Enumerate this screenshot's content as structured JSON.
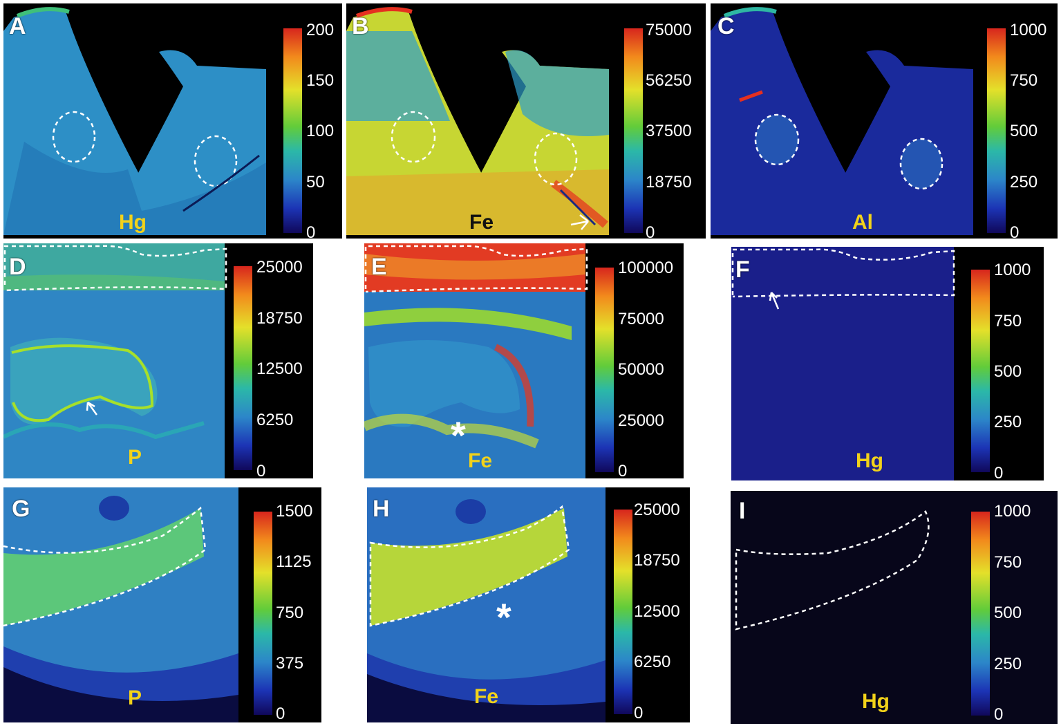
{
  "panels": [
    {
      "letter": "A",
      "element": "Hg",
      "ticks": [
        "200",
        "150",
        "100",
        "50",
        "0"
      ]
    },
    {
      "letter": "B",
      "element": "Fe",
      "ticks": [
        "75000",
        "56250",
        "37500",
        "18750",
        "0"
      ]
    },
    {
      "letter": "C",
      "element": "Al",
      "ticks": [
        "1000",
        "750",
        "500",
        "250",
        "0"
      ]
    },
    {
      "letter": "D",
      "element": "P",
      "ticks": [
        "25000",
        "18750",
        "12500",
        "6250",
        "0"
      ]
    },
    {
      "letter": "E",
      "element": "Fe",
      "ticks": [
        "100000",
        "75000",
        "50000",
        "25000",
        "0"
      ]
    },
    {
      "letter": "F",
      "element": "Hg",
      "ticks": [
        "1000",
        "750",
        "500",
        "250",
        "0"
      ]
    },
    {
      "letter": "G",
      "element": "P",
      "ticks": [
        "1500",
        "1125",
        "750",
        "375",
        "0"
      ]
    },
    {
      "letter": "H",
      "element": "Fe",
      "ticks": [
        "25000",
        "18750",
        "12500",
        "6250",
        "0"
      ]
    },
    {
      "letter": "I",
      "element": "Hg",
      "ticks": [
        "1000",
        "750",
        "500",
        "250",
        "0"
      ]
    }
  ],
  "annotations": {
    "asterisk": "*"
  },
  "colors": {
    "label_yellow": "#f2d21a",
    "label_dark": "#111111",
    "outline": "#ffffff",
    "background": "#000000"
  }
}
